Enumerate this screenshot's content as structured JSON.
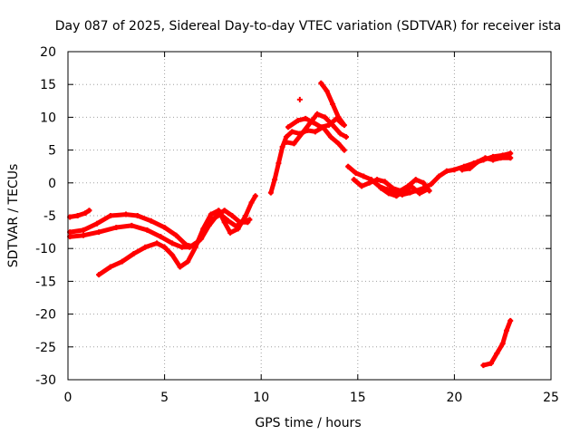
{
  "chart_data": {
    "type": "scatter",
    "title": "Day 087 of 2025, Sidereal Day-to-day VTEC variation (SDTVAR) for receiver ista",
    "xlabel": "GPS time / hours",
    "ylabel": "SDTVAR / TECUs",
    "xlim": [
      0,
      25
    ],
    "ylim": [
      -30,
      20
    ],
    "grid": true,
    "x_ticks": [
      0,
      5,
      10,
      15,
      20,
      25
    ],
    "y_ticks": [
      -30,
      -25,
      -20,
      -15,
      -10,
      -5,
      0,
      5,
      10,
      15,
      20
    ],
    "series_color": "#ff0000",
    "series": [
      {
        "name": "trace-1",
        "points": [
          [
            0.1,
            -5.2
          ],
          [
            0.5,
            -5.0
          ],
          [
            0.9,
            -4.6
          ],
          [
            1.1,
            -4.2
          ]
        ]
      },
      {
        "name": "trace-2",
        "points": [
          [
            0.1,
            -7.5
          ],
          [
            0.8,
            -7.2
          ],
          [
            1.5,
            -6.2
          ],
          [
            2.2,
            -5.0
          ],
          [
            3.0,
            -4.8
          ],
          [
            3.6,
            -5.0
          ],
          [
            4.3,
            -5.8
          ],
          [
            5.0,
            -6.8
          ],
          [
            5.6,
            -8.0
          ],
          [
            6.1,
            -9.4
          ],
          [
            6.5,
            -9.7
          ],
          [
            6.9,
            -8.5
          ],
          [
            7.3,
            -6.5
          ],
          [
            7.7,
            -5.0
          ],
          [
            8.1,
            -4.2
          ],
          [
            8.5,
            -5.0
          ],
          [
            8.9,
            -6.0
          ],
          [
            9.3,
            -6.0
          ]
        ]
      },
      {
        "name": "trace-3",
        "points": [
          [
            0.1,
            -8.2
          ],
          [
            0.8,
            -8.0
          ],
          [
            1.6,
            -7.5
          ],
          [
            2.5,
            -6.8
          ],
          [
            3.3,
            -6.5
          ],
          [
            4.1,
            -7.2
          ],
          [
            4.8,
            -8.2
          ],
          [
            5.4,
            -9.2
          ],
          [
            5.9,
            -9.8
          ],
          [
            6.3,
            -9.8
          ],
          [
            6.7,
            -9.0
          ],
          [
            7.1,
            -7.2
          ],
          [
            7.5,
            -5.5
          ],
          [
            7.9,
            -4.8
          ],
          [
            8.3,
            -5.8
          ],
          [
            8.7,
            -6.6
          ],
          [
            9.0,
            -6.0
          ],
          [
            9.4,
            -5.6
          ]
        ]
      },
      {
        "name": "trace-4",
        "points": [
          [
            1.6,
            -14.0
          ],
          [
            2.2,
            -12.8
          ],
          [
            2.8,
            -12.0
          ],
          [
            3.4,
            -10.8
          ],
          [
            4.0,
            -9.8
          ],
          [
            4.6,
            -9.2
          ],
          [
            5.0,
            -9.8
          ],
          [
            5.4,
            -11.0
          ],
          [
            5.8,
            -12.8
          ],
          [
            6.2,
            -12.0
          ],
          [
            6.6,
            -9.8
          ],
          [
            7.0,
            -7.0
          ],
          [
            7.4,
            -4.8
          ],
          [
            7.8,
            -4.2
          ],
          [
            8.1,
            -6.0
          ],
          [
            8.4,
            -7.6
          ],
          [
            8.8,
            -7.0
          ],
          [
            9.2,
            -5.0
          ],
          [
            9.5,
            -3.0
          ],
          [
            9.7,
            -2.0
          ]
        ]
      },
      {
        "name": "trace-5",
        "points": [
          [
            10.5,
            -1.5
          ],
          [
            10.7,
            0.5
          ],
          [
            10.9,
            3.0
          ],
          [
            11.1,
            5.5
          ],
          [
            11.3,
            7.0
          ],
          [
            11.6,
            7.8
          ],
          [
            12.0,
            7.5
          ],
          [
            12.4,
            8.0
          ],
          [
            12.8,
            7.8
          ],
          [
            13.2,
            8.5
          ],
          [
            13.6,
            7.0
          ],
          [
            14.0,
            6.0
          ],
          [
            14.3,
            5.0
          ]
        ]
      },
      {
        "name": "trace-6",
        "points": [
          [
            11.3,
            6.2
          ],
          [
            11.7,
            6.0
          ],
          [
            12.1,
            7.5
          ],
          [
            12.5,
            9.0
          ],
          [
            12.9,
            10.5
          ],
          [
            13.3,
            10.0
          ],
          [
            13.7,
            8.8
          ],
          [
            14.1,
            7.5
          ],
          [
            14.4,
            7.0
          ]
        ]
      },
      {
        "name": "trace-7",
        "points": [
          [
            11.4,
            8.5
          ],
          [
            11.9,
            9.5
          ],
          [
            12.3,
            9.8
          ],
          [
            12.7,
            9.2
          ],
          [
            13.1,
            8.5
          ],
          [
            13.5,
            8.8
          ],
          [
            13.9,
            9.8
          ],
          [
            14.2,
            9.0
          ]
        ]
      },
      {
        "name": "trace-8",
        "points": [
          [
            13.1,
            15.2
          ],
          [
            13.4,
            14.0
          ],
          [
            13.7,
            12.0
          ],
          [
            14.0,
            10.0
          ],
          [
            14.3,
            8.8
          ]
        ]
      },
      {
        "name": "trace-9",
        "points": [
          [
            12.0,
            12.7
          ]
        ]
      },
      {
        "name": "trace-10",
        "points": [
          [
            14.5,
            2.5
          ],
          [
            14.9,
            1.5
          ],
          [
            15.3,
            1.0
          ],
          [
            15.7,
            0.5
          ],
          [
            16.1,
            -0.5
          ],
          [
            16.5,
            -1.0
          ],
          [
            16.9,
            -1.5
          ],
          [
            17.3,
            -1.8
          ],
          [
            17.7,
            -1.5
          ],
          [
            18.0,
            -1.2
          ],
          [
            18.4,
            -0.8
          ],
          [
            18.8,
            -0.2
          ],
          [
            19.2,
            1.0
          ],
          [
            19.6,
            1.8
          ],
          [
            20.0,
            2.0
          ],
          [
            20.5,
            2.5
          ],
          [
            21.0,
            3.0
          ],
          [
            21.5,
            3.5
          ],
          [
            22.0,
            4.0
          ],
          [
            22.5,
            4.2
          ],
          [
            22.9,
            4.5
          ]
        ]
      },
      {
        "name": "trace-11",
        "points": [
          [
            14.8,
            0.5
          ],
          [
            15.2,
            -0.5
          ],
          [
            15.6,
            0.0
          ],
          [
            16.0,
            0.5
          ],
          [
            16.4,
            0.2
          ],
          [
            16.8,
            -0.8
          ],
          [
            17.2,
            -1.2
          ],
          [
            17.6,
            -0.5
          ],
          [
            18.0,
            0.5
          ],
          [
            18.4,
            0.0
          ],
          [
            18.7,
            -1.2
          ]
        ]
      },
      {
        "name": "trace-12",
        "points": [
          [
            16.2,
            -0.8
          ],
          [
            16.6,
            -1.6
          ],
          [
            17.0,
            -2.0
          ],
          [
            17.4,
            -1.2
          ],
          [
            17.8,
            -0.6
          ],
          [
            18.2,
            -1.6
          ],
          [
            18.6,
            -1.0
          ]
        ]
      },
      {
        "name": "trace-13",
        "points": [
          [
            20.4,
            2.0
          ],
          [
            20.8,
            2.2
          ],
          [
            21.2,
            3.2
          ],
          [
            21.6,
            3.8
          ],
          [
            22.0,
            3.5
          ],
          [
            22.4,
            3.8
          ],
          [
            22.9,
            3.8
          ]
        ]
      },
      {
        "name": "trace-14",
        "points": [
          [
            21.5,
            -27.8
          ],
          [
            21.9,
            -27.5
          ],
          [
            22.2,
            -26.0
          ],
          [
            22.5,
            -24.5
          ],
          [
            22.7,
            -22.5
          ],
          [
            22.9,
            -21.0
          ]
        ]
      }
    ]
  }
}
